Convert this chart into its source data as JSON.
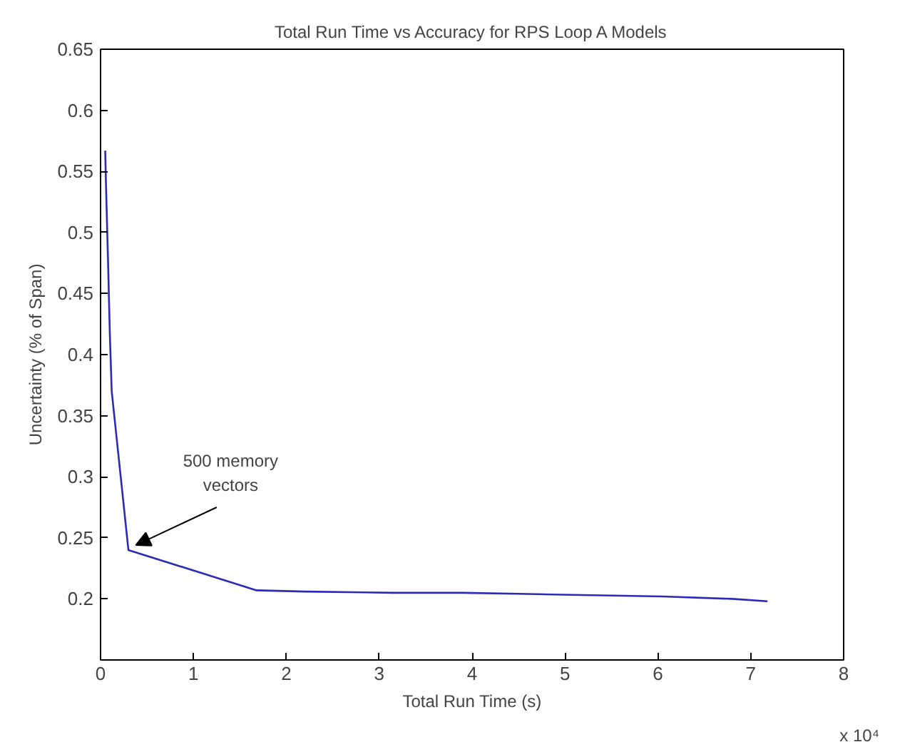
{
  "chart_data": {
    "type": "line",
    "title": "Total Run Time vs Accuracy for RPS Loop A Models",
    "xlabel": "Total Run Time (s)",
    "ylabel": "Uncertainty (% of Span)",
    "x": [
      0.05,
      0.06,
      0.08,
      0.1,
      0.12,
      0.3,
      1.68,
      2.2,
      3.15,
      3.9,
      4.6,
      5.3,
      6.05,
      6.8,
      7.18
    ],
    "series": [
      {
        "color": "#2b2bb8",
        "values": [
          0.567,
          0.535,
          0.478,
          0.417,
          0.37,
          0.24,
          0.207,
          0.206,
          0.205,
          0.205,
          0.204,
          0.203,
          0.202,
          0.2,
          0.198
        ]
      }
    ],
    "xlim": [
      0,
      8
    ],
    "xticks": [
      0,
      1,
      2,
      3,
      4,
      5,
      6,
      7,
      8
    ],
    "ylim": [
      0.15,
      0.65
    ],
    "yticks": [
      {
        "value": 0.15,
        "label": null
      },
      0.2,
      0.25,
      0.3,
      0.35,
      0.4,
      0.45,
      0.5,
      0.55,
      0.6,
      0.65
    ],
    "annotations": [
      {
        "text": "500 memory\nvectors",
        "x": 0.3,
        "y": 0.24
      },
      "x 10⁴"
    ],
    "grid": false,
    "marker": "none",
    "line_style": "solid"
  }
}
